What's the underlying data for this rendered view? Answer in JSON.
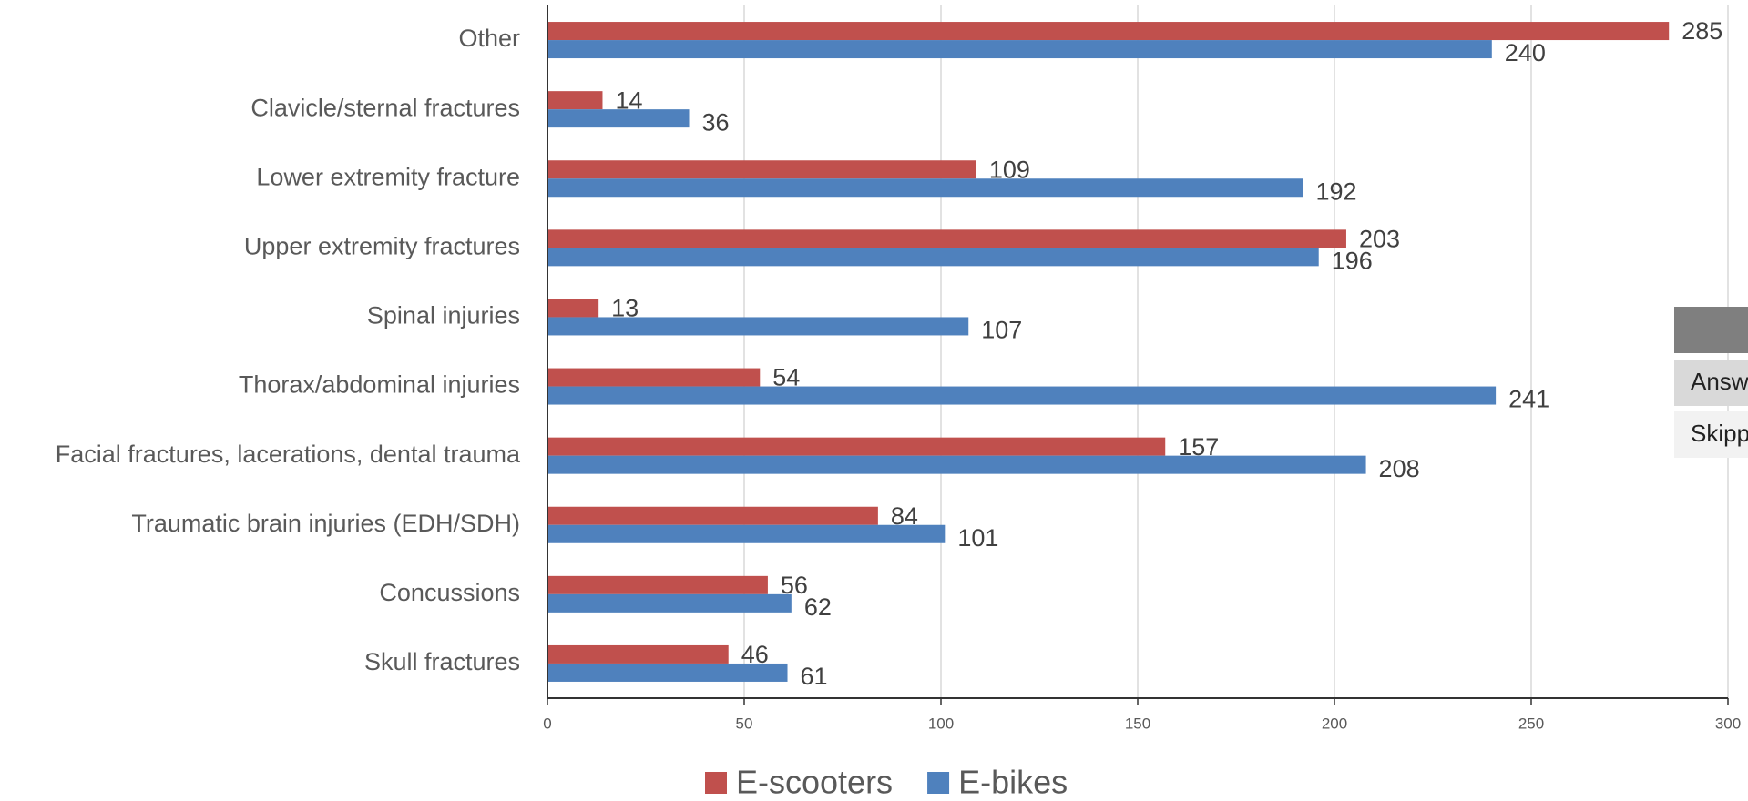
{
  "chart_data": {
    "type": "bar",
    "orientation": "horizontal",
    "categories": [
      "Other",
      "Clavicle/sternal fractures",
      "Lower extremity fracture",
      "Upper extremity fractures",
      "Spinal injuries",
      "Thorax/abdominal injuries",
      "Facial fractures, lacerations, dental trauma",
      "Traumatic brain injuries (EDH/SDH)",
      "Concussions",
      "Skull fractures"
    ],
    "series": [
      {
        "name": "E-scooters",
        "color": "#c0504d",
        "values": [
          285,
          14,
          109,
          203,
          13,
          54,
          157,
          84,
          56,
          46
        ]
      },
      {
        "name": "E-bikes",
        "color": "#4f81bd",
        "values": [
          240,
          36,
          192,
          196,
          107,
          241,
          208,
          101,
          62,
          61
        ]
      }
    ],
    "xlim": [
      0,
      300
    ],
    "xticks": [
      0,
      50,
      100,
      150,
      200,
      250,
      300
    ],
    "grid": true,
    "legend": "bottom"
  },
  "overlay": {
    "rows": [
      "Answ",
      "Skipp"
    ]
  }
}
